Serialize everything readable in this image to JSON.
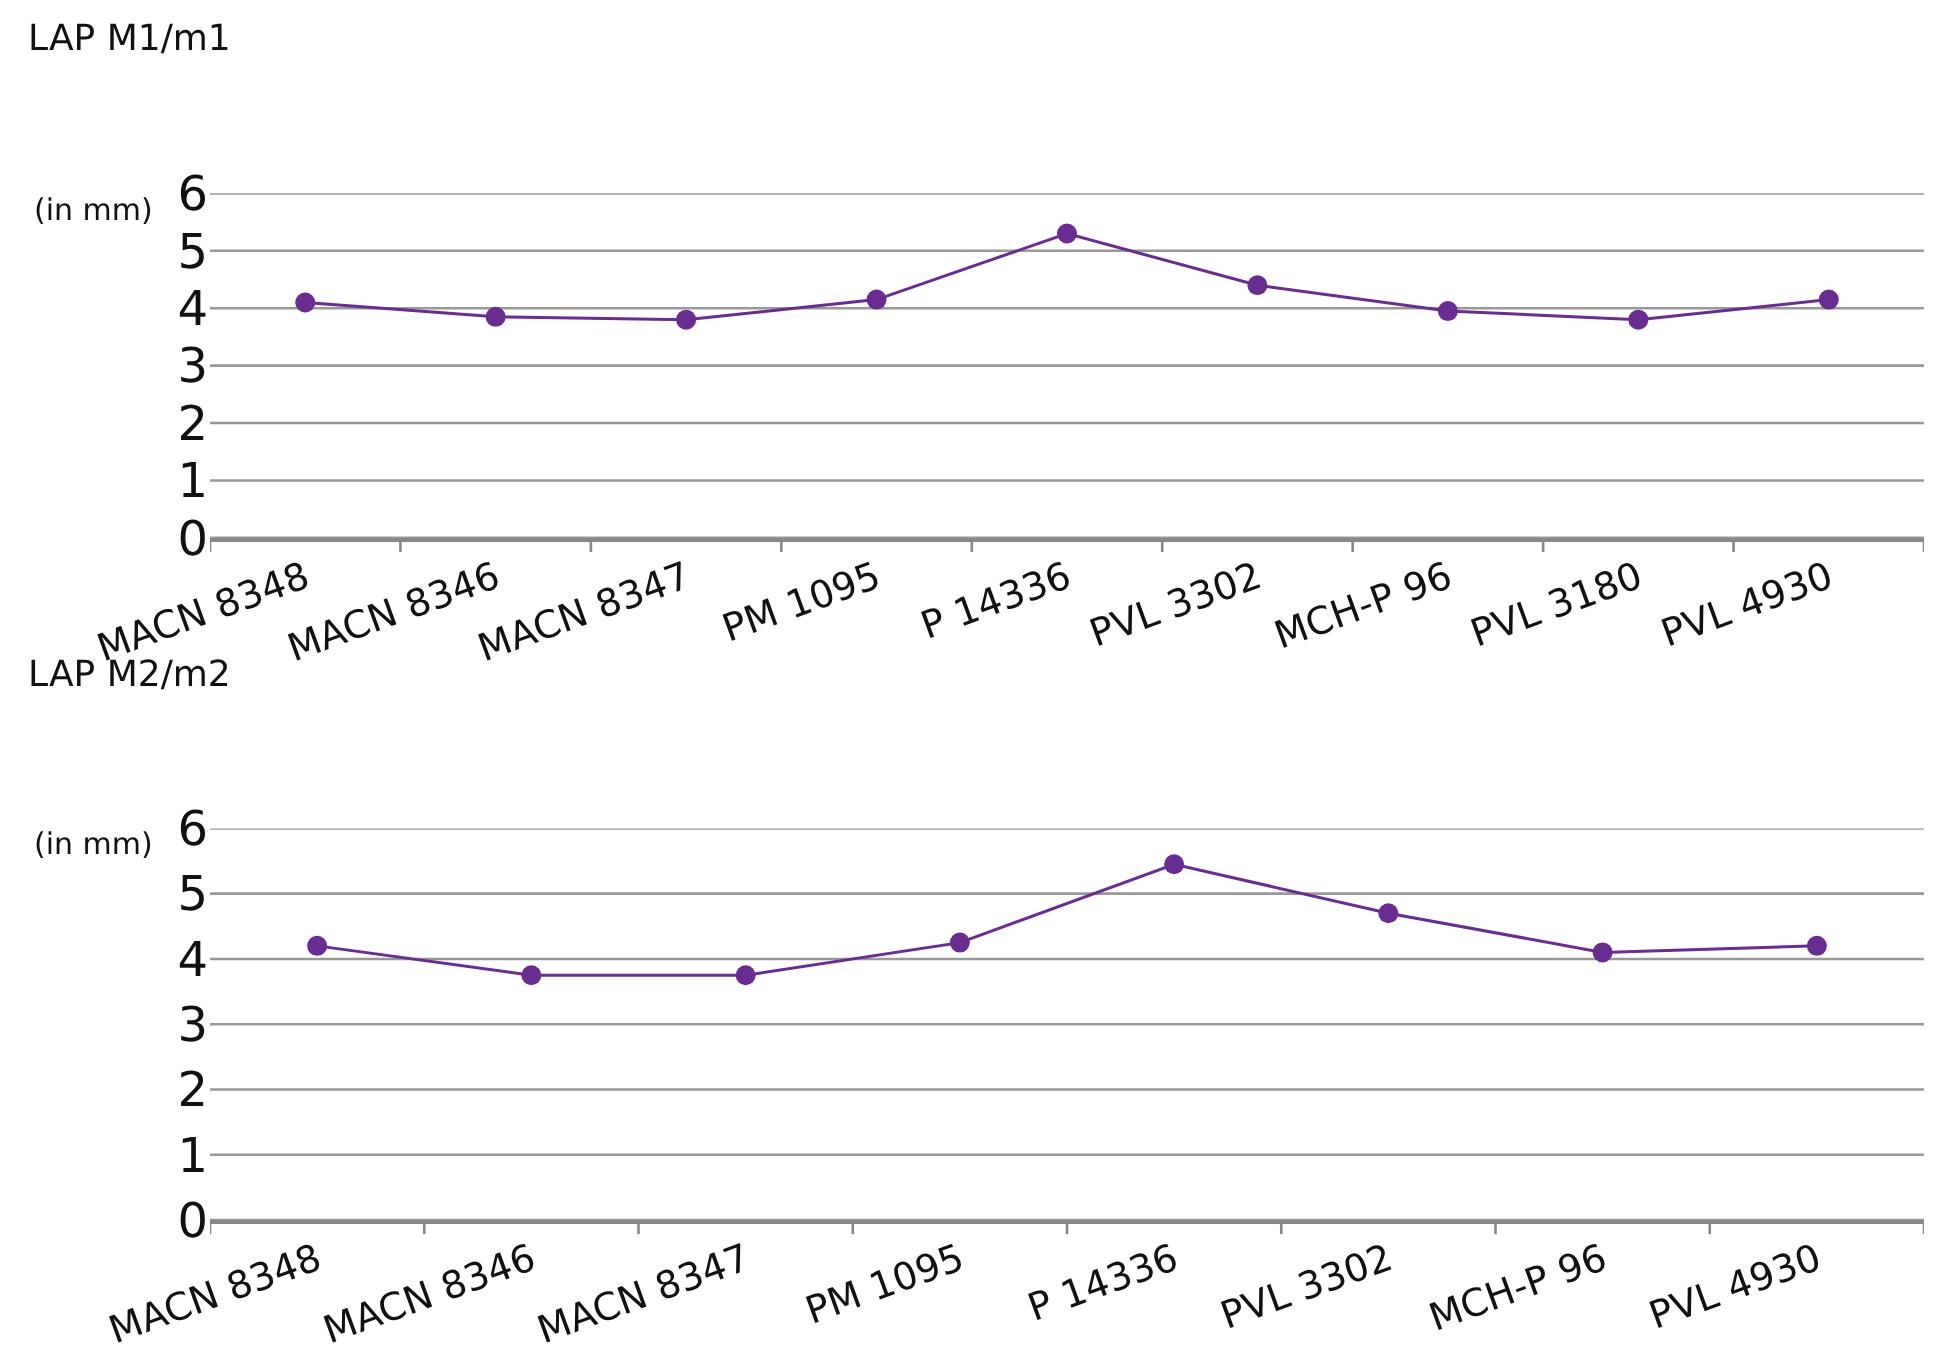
{
  "chart_data": [
    {
      "type": "line",
      "title": "LAP M1/m1",
      "ylabel": "(in mm)",
      "categories": [
        "MACN 8348",
        "MACN 8346",
        "MACN 8347",
        "PM 1095",
        "P 14336",
        "PVL 3302",
        "MCH-P 96",
        "PVL 3180",
        "PVL 4930"
      ],
      "series": [
        {
          "color": "#6a2c91",
          "values": [
            4.1,
            3.85,
            3.8,
            4.15,
            5.3,
            4.4,
            3.95,
            3.8,
            4.15
          ]
        }
      ],
      "ylim": [
        0,
        6
      ],
      "yticks": [
        0,
        1,
        2,
        3,
        4,
        5,
        6
      ],
      "grid": "y",
      "marker": "circle",
      "line_style": "solid"
    },
    {
      "type": "line",
      "title": "LAP M2/m2",
      "ylabel": "(in mm)",
      "categories": [
        "MACN 8348",
        "MACN 8346",
        "MACN 8347",
        "PM 1095",
        "P 14336",
        "PVL 3302",
        "MCH-P 96",
        "PVL 4930"
      ],
      "series": [
        {
          "color": "#6a2c91",
          "values": [
            4.2,
            3.75,
            3.75,
            4.25,
            5.45,
            4.7,
            4.1,
            4.2
          ]
        }
      ],
      "ylim": [
        0,
        6
      ],
      "yticks": [
        0,
        1,
        2,
        3,
        4,
        5,
        6
      ],
      "grid": "y",
      "marker": "circle",
      "line_style": "solid"
    }
  ]
}
